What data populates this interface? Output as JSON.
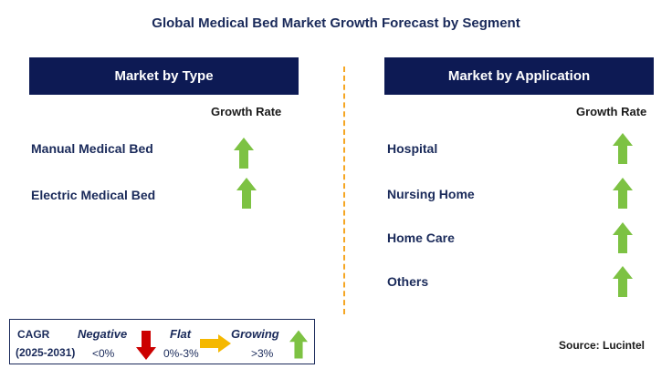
{
  "title": "Global Medical Bed Market Growth Forecast by Segment",
  "colors": {
    "header_bg": "#0d1a54",
    "growth_arrow": "#7dc243",
    "negative_arrow": "#cc0000",
    "flat_arrow": "#f5b800",
    "divider": "#f5a623"
  },
  "left_panel": {
    "header": "Market by Type",
    "column_label": "Growth Rate",
    "rows": [
      {
        "label": "Manual Medical Bed",
        "trend": "growing",
        "icon": "up-arrow-icon"
      },
      {
        "label": "Electric Medical Bed",
        "trend": "growing",
        "icon": "up-arrow-icon"
      }
    ]
  },
  "right_panel": {
    "header": "Market by Application",
    "column_label": "Growth Rate",
    "rows": [
      {
        "label": "Hospital",
        "trend": "growing",
        "icon": "up-arrow-icon"
      },
      {
        "label": "Nursing Home",
        "trend": "growing",
        "icon": "up-arrow-icon"
      },
      {
        "label": "Home Care",
        "trend": "growing",
        "icon": "up-arrow-icon"
      },
      {
        "label": "Others",
        "trend": "growing",
        "icon": "up-arrow-icon"
      }
    ]
  },
  "legend": {
    "cagr_label": "CAGR",
    "period": "(2025-2031)",
    "negative_label": "Negative",
    "negative_range": "<0%",
    "flat_label": "Flat",
    "flat_range": "0%-3%",
    "growing_label": "Growing",
    "growing_range": ">3%"
  },
  "source": "Source: Lucintel"
}
